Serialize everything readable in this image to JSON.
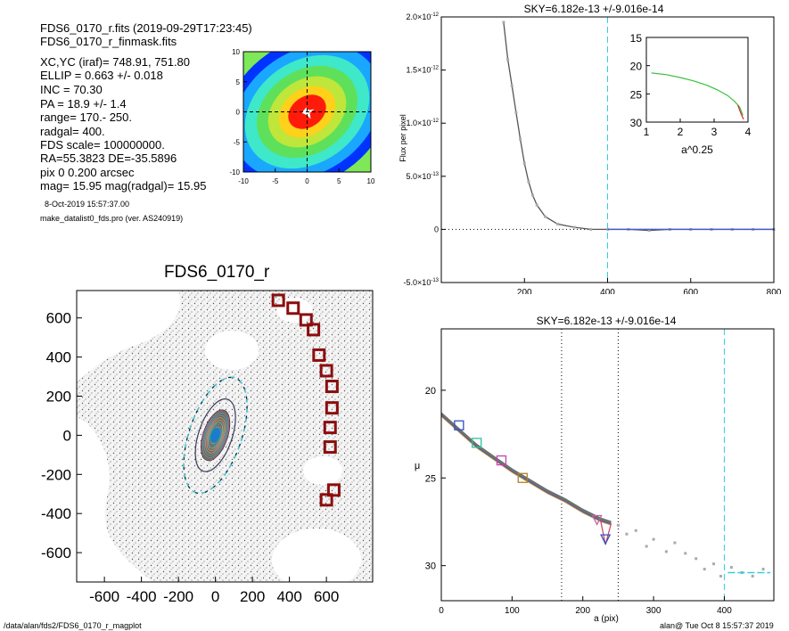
{
  "header": {
    "lines": [
      "FDS6_0170_r.fits   (2019-09-29T17:23:45)",
      "FDS6_0170_r_finmask.fits"
    ],
    "params": [
      "XC,YC (iraf)=   748.91, 751.80",
      "ELLIP = 0.663 +/- 0.018",
      "INC    = 70.30",
      "PA     =  18.9 +/-   1.4",
      "range=  170.-  250.",
      "radgal=  400.",
      "FDS scale=  100000000.",
      "RA=55.3823   DE=-35.5896",
      "pix 0 0.200 arcsec",
      "mag=  15.95  mag(radgal)=  15.95"
    ],
    "date": "8-Oct-2019 15:57:37.00",
    "program": "make_datalist0_fds.pro (ver. AS240919)"
  },
  "footer": {
    "path": "/data/alan/fds2/FDS6_0170_r_magplot",
    "stamp": "alan@  Tue Oct  8 15:57:37 2019"
  },
  "chart_data": [
    {
      "id": "thumbnail",
      "type": "heatmap",
      "xlim": [
        -10,
        10
      ],
      "ylim": [
        -10,
        10
      ],
      "xticks": [
        -10,
        -5,
        0,
        5,
        10
      ],
      "yticks": [
        10,
        5,
        0,
        -5,
        -10
      ],
      "levels": [
        {
          "a": 14,
          "b": 11,
          "color": "#0033ff"
        },
        {
          "a": 12.5,
          "b": 9.5,
          "color": "#19a7ff"
        },
        {
          "a": 10.5,
          "b": 8,
          "color": "#3ee8c8"
        },
        {
          "a": 8.5,
          "b": 6.5,
          "color": "#5fe05a"
        },
        {
          "a": 6.6,
          "b": 5,
          "color": "#bfe63a"
        },
        {
          "a": 4.8,
          "b": 3.6,
          "color": "#ffd11a"
        },
        {
          "a": 3.2,
          "b": 2.4,
          "color": "#ff1a0a"
        }
      ]
    },
    {
      "id": "image",
      "type": "scatter",
      "title": "FDS6_0170_r",
      "xlim": [
        -750,
        850
      ],
      "ylim": [
        -750,
        740
      ],
      "xticks": [
        -600,
        -400,
        -200,
        0,
        200,
        400,
        600
      ],
      "yticks": [
        600,
        400,
        200,
        0,
        -200,
        -400,
        -600
      ],
      "ellipse_pa_deg": 18.9,
      "ellipse_outer": {
        "a": 400,
        "b": 135
      },
      "ellipse_range": {
        "a": 250,
        "b": 84
      },
      "ellipse_inner": {
        "a": 170,
        "b": 57
      },
      "sky_boxes": [
        [
          340,
          690
        ],
        [
          420,
          650
        ],
        [
          490,
          590
        ],
        [
          530,
          540
        ],
        [
          560,
          410
        ],
        [
          600,
          330
        ],
        [
          630,
          250
        ],
        [
          630,
          140
        ],
        [
          620,
          40
        ],
        [
          620,
          -60
        ],
        [
          640,
          -280
        ],
        [
          600,
          -330
        ]
      ]
    },
    {
      "id": "sky",
      "type": "line",
      "title": "SKY=6.182e-13 +/-9.016e-14",
      "ylabel": "Flux per pixel",
      "xlim": [
        0,
        800
      ],
      "ylim": [
        -5e-13,
        2e-12
      ],
      "xticks": [
        200,
        400,
        600,
        800
      ],
      "yticks": [
        {
          "v": 2e-12,
          "m": "2.0×10",
          "e": "-12"
        },
        {
          "v": 1.5e-12,
          "m": "1.5×10",
          "e": "-12"
        },
        {
          "v": 1e-12,
          "m": "1.0×10",
          "e": "-12"
        },
        {
          "v": 5e-13,
          "m": "5.0×10",
          "e": "-13"
        },
        {
          "v": 0,
          "m": "0",
          "e": ""
        },
        {
          "v": -5e-13,
          "m": "-5.0×10",
          "e": "-13"
        }
      ],
      "vline_x": 400,
      "series": [
        {
          "x": [
            150,
            160,
            170,
            180,
            190,
            200,
            210,
            220,
            230,
            250,
            280,
            320,
            360,
            400,
            450,
            500,
            550,
            600,
            650,
            700,
            750,
            800
          ],
          "y": [
            1.95e-12,
            1.6e-12,
            1.35e-12,
            1.1e-12,
            8.5e-13,
            6.2e-13,
            4.5e-13,
            3.2e-13,
            2.3e-13,
            1.2e-13,
            5e-14,
            2e-14,
            0.0,
            0.0,
            0.0,
            -1e-14,
            0.0,
            0.0,
            0.0,
            0.0,
            0.0,
            0.0
          ]
        }
      ]
    },
    {
      "id": "inset",
      "type": "line",
      "xlabel": "a^0.25",
      "xlim": [
        1,
        4
      ],
      "ylim": [
        30,
        15
      ],
      "xticks": [
        1,
        2,
        3,
        4
      ],
      "yticks": [
        15,
        20,
        25,
        30
      ],
      "series": [
        {
          "x": [
            1.15,
            1.6,
            2.0,
            2.4,
            2.8,
            3.1,
            3.4,
            3.6,
            3.75,
            3.85
          ],
          "y": [
            21.3,
            21.6,
            22.1,
            22.7,
            23.5,
            24.3,
            25.3,
            26.3,
            27.3,
            28.8
          ]
        }
      ]
    },
    {
      "id": "profile",
      "type": "line",
      "title": "SKY=6.182e-13 +/-9.016e-14",
      "xlabel": "a (pix)",
      "ylabel": "μ",
      "xlim": [
        0,
        470
      ],
      "ylim": [
        32,
        16.5
      ],
      "xticks": [
        0,
        100,
        200,
        300,
        400
      ],
      "yticks": [
        20,
        25,
        30
      ],
      "vlines_dotted": [
        170,
        250
      ],
      "vline_dashed": 400,
      "series": [
        {
          "x": [
            0,
            25,
            50,
            75,
            100,
            125,
            150,
            175,
            200,
            225,
            240
          ],
          "y": [
            21.4,
            22.3,
            23.2,
            23.9,
            24.6,
            25.2,
            25.8,
            26.3,
            26.9,
            27.4,
            27.6
          ]
        }
      ],
      "markers": [
        {
          "x": 25,
          "y": 22.0,
          "color": "#3050c0",
          "shape": "square"
        },
        {
          "x": 50,
          "y": 23.0,
          "color": "#30c0a0",
          "shape": "square"
        },
        {
          "x": 85,
          "y": 24.0,
          "color": "#c040c0",
          "shape": "square"
        },
        {
          "x": 115,
          "y": 25.0,
          "color": "#b08020",
          "shape": "square"
        },
        {
          "x": 220,
          "y": 27.4,
          "color": "#c060a0",
          "shape": "triangle"
        },
        {
          "x": 232,
          "y": 28.5,
          "color": "#3050c0",
          "shape": "triangle"
        }
      ],
      "sky_points": [
        [
          250,
          27.7
        ],
        [
          262,
          28.2
        ],
        [
          275,
          28.0
        ],
        [
          290,
          28.9
        ],
        [
          300,
          28.5
        ],
        [
          318,
          29.2
        ],
        [
          330,
          28.7
        ],
        [
          345,
          29.3
        ],
        [
          360,
          29.6
        ],
        [
          372,
          30.2
        ],
        [
          385,
          29.9
        ],
        [
          395,
          30.6
        ],
        [
          410,
          30.1
        ],
        [
          425,
          30.4
        ],
        [
          440,
          30.6
        ],
        [
          455,
          30.2
        ]
      ],
      "sky_segment": {
        "x": [
          405,
          465
        ],
        "y": 30.4
      }
    }
  ]
}
